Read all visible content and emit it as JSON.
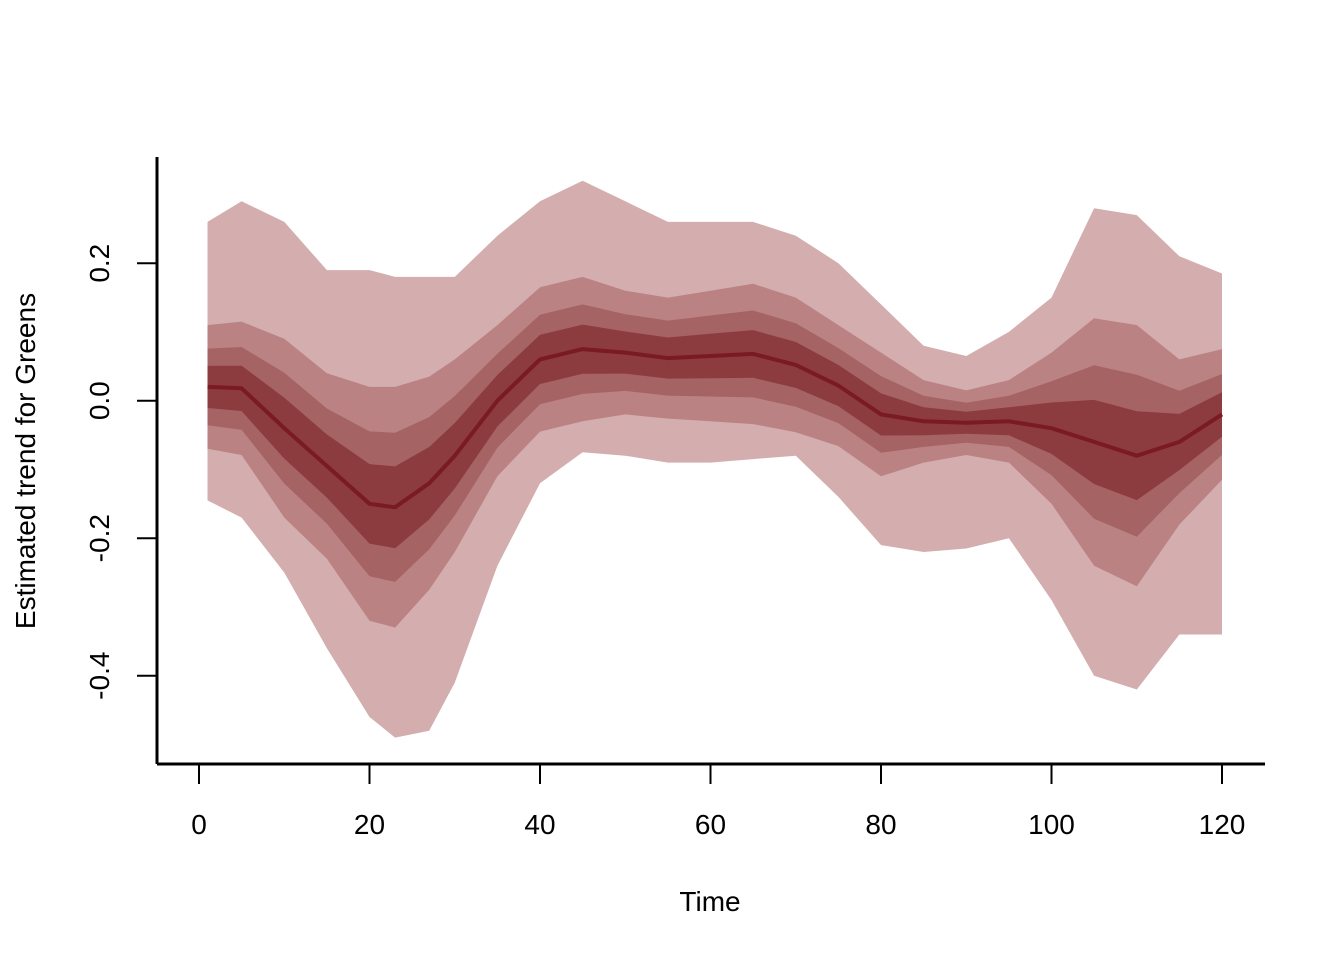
{
  "chart_data": {
    "type": "area",
    "title": "",
    "xlabel": "Time",
    "ylabel": "Estimated trend for Greens",
    "xlim": [
      -5,
      125
    ],
    "ylim": [
      -0.53,
      0.36
    ],
    "x_ticks": [
      0,
      20,
      40,
      60,
      80,
      100,
      120
    ],
    "x_tick_labels": [
      "0",
      "20",
      "40",
      "60",
      "80",
      "100",
      "120"
    ],
    "y_ticks": [
      -0.4,
      -0.2,
      0.0,
      0.2
    ],
    "y_tick_labels": [
      "-0.4",
      "-0.2",
      "0.0",
      "0.2"
    ],
    "grid": false,
    "legend": "none",
    "colors": {
      "outer_band": "#d4adae",
      "band_2": "#bb8283",
      "band_3": "#a56364",
      "inner_band": "#8c3b3e",
      "median_line": "#7a1a22",
      "axis": "#000000"
    },
    "x": [
      1,
      5,
      10,
      15,
      20,
      23,
      27,
      30,
      35,
      40,
      45,
      50,
      55,
      60,
      65,
      70,
      75,
      80,
      85,
      90,
      95,
      100,
      105,
      110,
      115,
      120
    ],
    "median": [
      0.02,
      0.018,
      -0.04,
      -0.095,
      -0.15,
      -0.155,
      -0.12,
      -0.08,
      0.0,
      0.06,
      0.075,
      0.07,
      0.062,
      0.065,
      0.068,
      0.052,
      0.022,
      -0.02,
      -0.03,
      -0.032,
      -0.03,
      -0.04,
      -0.06,
      -0.08,
      -0.06,
      -0.02
    ],
    "bands": [
      {
        "upper": [
          0.26,
          0.29,
          0.26,
          0.19,
          0.19,
          0.18,
          0.18,
          0.18,
          0.24,
          0.29,
          0.32,
          0.29,
          0.26,
          0.26,
          0.26,
          0.24,
          0.2,
          0.14,
          0.08,
          0.065,
          0.1,
          0.15,
          0.28,
          0.27,
          0.21,
          0.185
        ],
        "lower": [
          -0.145,
          -0.17,
          -0.25,
          -0.36,
          -0.46,
          -0.49,
          -0.48,
          -0.41,
          -0.24,
          -0.12,
          -0.075,
          -0.08,
          -0.09,
          -0.09,
          -0.085,
          -0.08,
          -0.14,
          -0.21,
          -0.22,
          -0.215,
          -0.2,
          -0.29,
          -0.4,
          -0.42,
          -0.34,
          -0.34
        ]
      },
      {
        "upper": [
          0.11,
          0.115,
          0.09,
          0.04,
          0.02,
          0.02,
          0.035,
          0.06,
          0.11,
          0.165,
          0.18,
          0.16,
          0.15,
          0.16,
          0.17,
          0.15,
          0.11,
          0.07,
          0.03,
          0.015,
          0.03,
          0.07,
          0.12,
          0.11,
          0.06,
          0.075
        ]
      }
    ]
  }
}
